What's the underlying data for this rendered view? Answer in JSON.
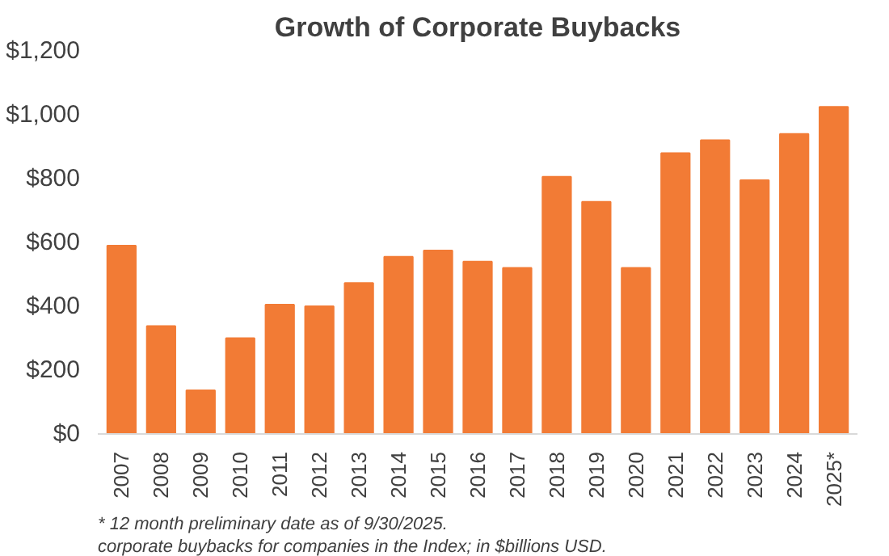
{
  "chart_data": {
    "type": "bar",
    "title": "Growth of Corporate Buybacks",
    "categories": [
      "2007",
      "2008",
      "2009",
      "2010",
      "2011",
      "2012",
      "2013",
      "2014",
      "2015",
      "2016",
      "2017",
      "2018",
      "2019",
      "2020",
      "2021",
      "2022",
      "2023",
      "2024",
      "2025*"
    ],
    "values": [
      590,
      338,
      137,
      300,
      405,
      400,
      473,
      555,
      575,
      540,
      520,
      806,
      727,
      520,
      880,
      920,
      795,
      940,
      1025
    ],
    "color": "#f27b35",
    "ylim": [
      0,
      1200
    ],
    "yticks": [
      {
        "value": 0,
        "label": "$0"
      },
      {
        "value": 200,
        "label": "$200"
      },
      {
        "value": 400,
        "label": "$400"
      },
      {
        "value": 600,
        "label": "$600"
      },
      {
        "value": 800,
        "label": "$800"
      },
      {
        "value": 1000,
        "label": "$1,000"
      },
      {
        "value": 1200,
        "label": "$1,200"
      }
    ],
    "grid": false,
    "annotations": [
      "* 12 month preliminary date as of 9/30/2025.",
      "corporate buybacks for companies in the Index; in $billions USD."
    ]
  }
}
